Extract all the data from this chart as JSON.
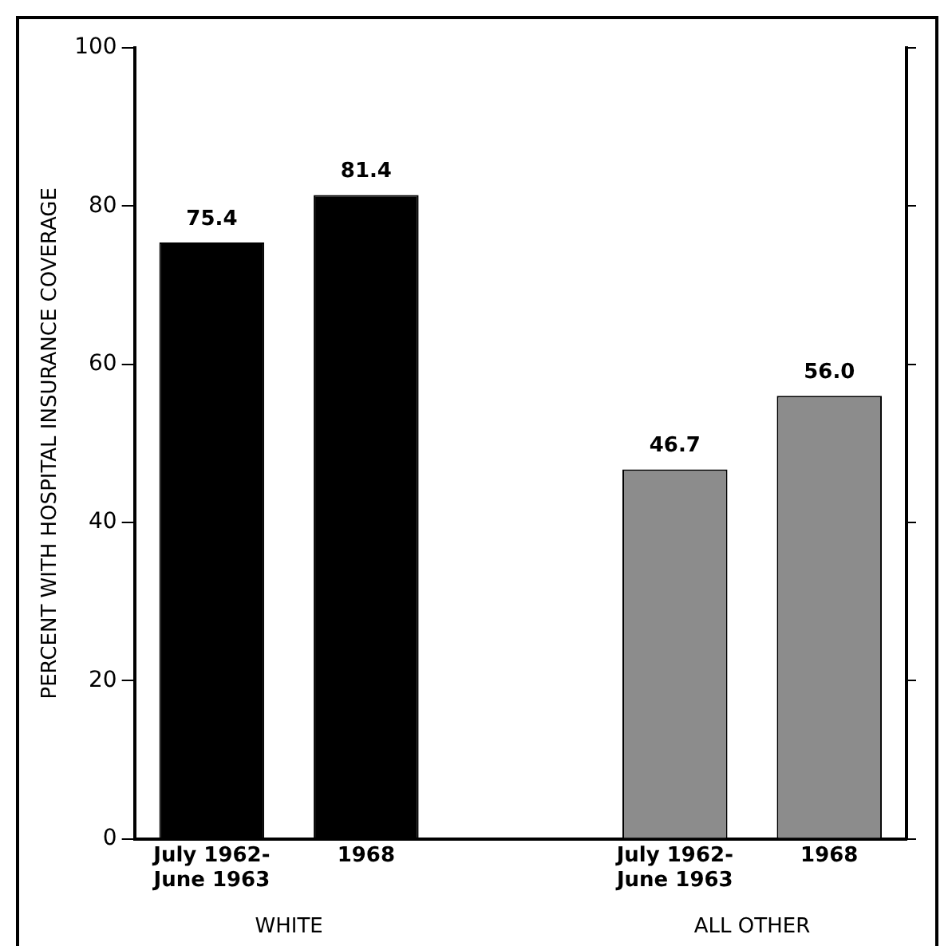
{
  "chart_data": {
    "type": "bar",
    "ylabel": "PERCENT WITH HOSPITAL INSURANCE COVERAGE",
    "categories": [
      "July 1962-\nJune 1963",
      "1968",
      null,
      "July 1962-\nJune 1963",
      "1968"
    ],
    "values": [
      75.4,
      81.4,
      null,
      46.7,
      56.0
    ],
    "colors": [
      "#000000",
      "#000000",
      null,
      "#8c8c8c",
      "#8c8c8c"
    ],
    "value_labels": [
      "75.4",
      "81.4",
      null,
      "46.7",
      "56.0"
    ],
    "ylim": [
      0,
      100
    ],
    "yticks": [
      0,
      20,
      40,
      60,
      80,
      100
    ],
    "annotations": [
      "WHITE",
      "ALL OTHER"
    ],
    "grid": false,
    "legend": false
  }
}
